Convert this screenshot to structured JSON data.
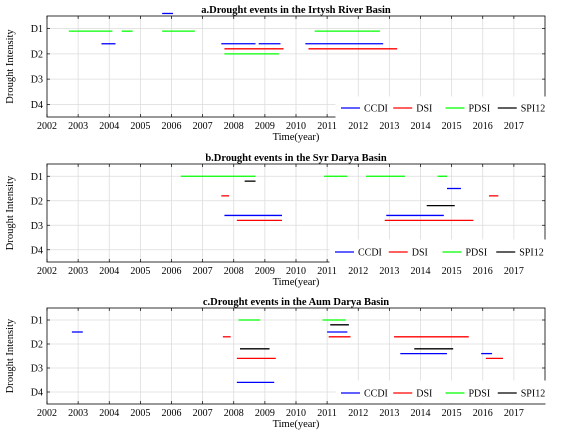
{
  "colors": {
    "CCDI": "#0000ff",
    "DSI": "#ff0000",
    "PDSI": "#00ff00",
    "SPI12": "#000000"
  },
  "legend": [
    "CCDI",
    "DSI",
    "PDSI",
    "SPI12"
  ],
  "x_ticks": [
    2002,
    2003,
    2004,
    2005,
    2006,
    2007,
    2008,
    2009,
    2010,
    2011,
    2012,
    2013,
    2014,
    2015,
    2016,
    2017
  ],
  "y_ticks": [
    "D1",
    "D2",
    "D3",
    "D4"
  ],
  "xlabel": "Time(year)",
  "ylabel": "Drought Intensity",
  "chart_data": [
    {
      "type": "line",
      "title": "a.Drought events in the Irtysh River Basin",
      "xlim": [
        2002,
        2018
      ],
      "ylim": [
        0.5,
        4.5
      ],
      "series": [
        {
          "name": "CCDI",
          "segments": [
            [
              2005.7,
              2006.05,
              0.4
            ],
            [
              2003.75,
              2004.2,
              1.6
            ],
            [
              2007.6,
              2008.7,
              1.6
            ],
            [
              2008.8,
              2009.5,
              1.6
            ],
            [
              2010.3,
              2012.8,
              1.6
            ]
          ]
        },
        {
          "name": "DSI",
          "segments": [
            [
              2007.7,
              2009.6,
              1.8
            ],
            [
              2010.4,
              2013.25,
              1.8
            ]
          ]
        },
        {
          "name": "PDSI",
          "segments": [
            [
              2002.7,
              2004.1,
              1.1
            ],
            [
              2004.4,
              2004.75,
              1.1
            ],
            [
              2005.7,
              2006.75,
              1.1
            ],
            [
              2010.6,
              2012.7,
              1.1
            ],
            [
              2007.7,
              2009.45,
              2.0
            ]
          ]
        },
        {
          "name": "SPI12",
          "segments": []
        }
      ]
    },
    {
      "type": "line",
      "title": "b.Drought events in the Syr Darya Basin",
      "xlim": [
        2002,
        2018
      ],
      "ylim": [
        0.5,
        4.5
      ],
      "series": [
        {
          "name": "CCDI",
          "segments": [
            [
              2014.85,
              2015.3,
              1.5
            ],
            [
              2007.7,
              2009.55,
              2.6
            ],
            [
              2012.9,
              2014.75,
              2.6
            ]
          ]
        },
        {
          "name": "DSI",
          "segments": [
            [
              2007.6,
              2007.85,
              1.8
            ],
            [
              2016.2,
              2016.5,
              1.8
            ],
            [
              2008.1,
              2009.55,
              2.8
            ],
            [
              2012.85,
              2015.7,
              2.8
            ]
          ]
        },
        {
          "name": "PDSI",
          "segments": [
            [
              2006.3,
              2008.7,
              1.0
            ],
            [
              2010.9,
              2011.65,
              1.0
            ],
            [
              2012.25,
              2013.5,
              1.0
            ],
            [
              2014.55,
              2014.85,
              1.0
            ]
          ]
        },
        {
          "name": "SPI12",
          "segments": [
            [
              2008.35,
              2008.7,
              1.2
            ],
            [
              2014.2,
              2015.1,
              2.2
            ]
          ]
        }
      ]
    },
    {
      "type": "line",
      "title": "c.Drought events in the Aum Darya Basin",
      "xlim": [
        2002,
        2018
      ],
      "ylim": [
        0.5,
        4.5
      ],
      "series": [
        {
          "name": "CCDI",
          "segments": [
            [
              2002.8,
              2003.15,
              1.5
            ],
            [
              2011.0,
              2011.65,
              1.5
            ],
            [
              2013.35,
              2014.85,
              2.4
            ],
            [
              2015.95,
              2016.3,
              2.4
            ],
            [
              2008.1,
              2009.3,
              3.6
            ]
          ]
        },
        {
          "name": "DSI",
          "segments": [
            [
              2007.65,
              2007.9,
              1.7
            ],
            [
              2011.05,
              2011.75,
              1.7
            ],
            [
              2013.15,
              2015.55,
              1.7
            ],
            [
              2008.1,
              2009.35,
              2.6
            ],
            [
              2016.1,
              2016.65,
              2.6
            ]
          ]
        },
        {
          "name": "PDSI",
          "segments": [
            [
              2008.15,
              2008.85,
              1.0
            ],
            [
              2010.85,
              2011.6,
              1.0
            ]
          ]
        },
        {
          "name": "SPI12",
          "segments": [
            [
              2011.1,
              2011.7,
              1.2
            ],
            [
              2008.2,
              2009.15,
              2.2
            ],
            [
              2013.8,
              2015.05,
              2.2
            ]
          ]
        }
      ]
    }
  ]
}
